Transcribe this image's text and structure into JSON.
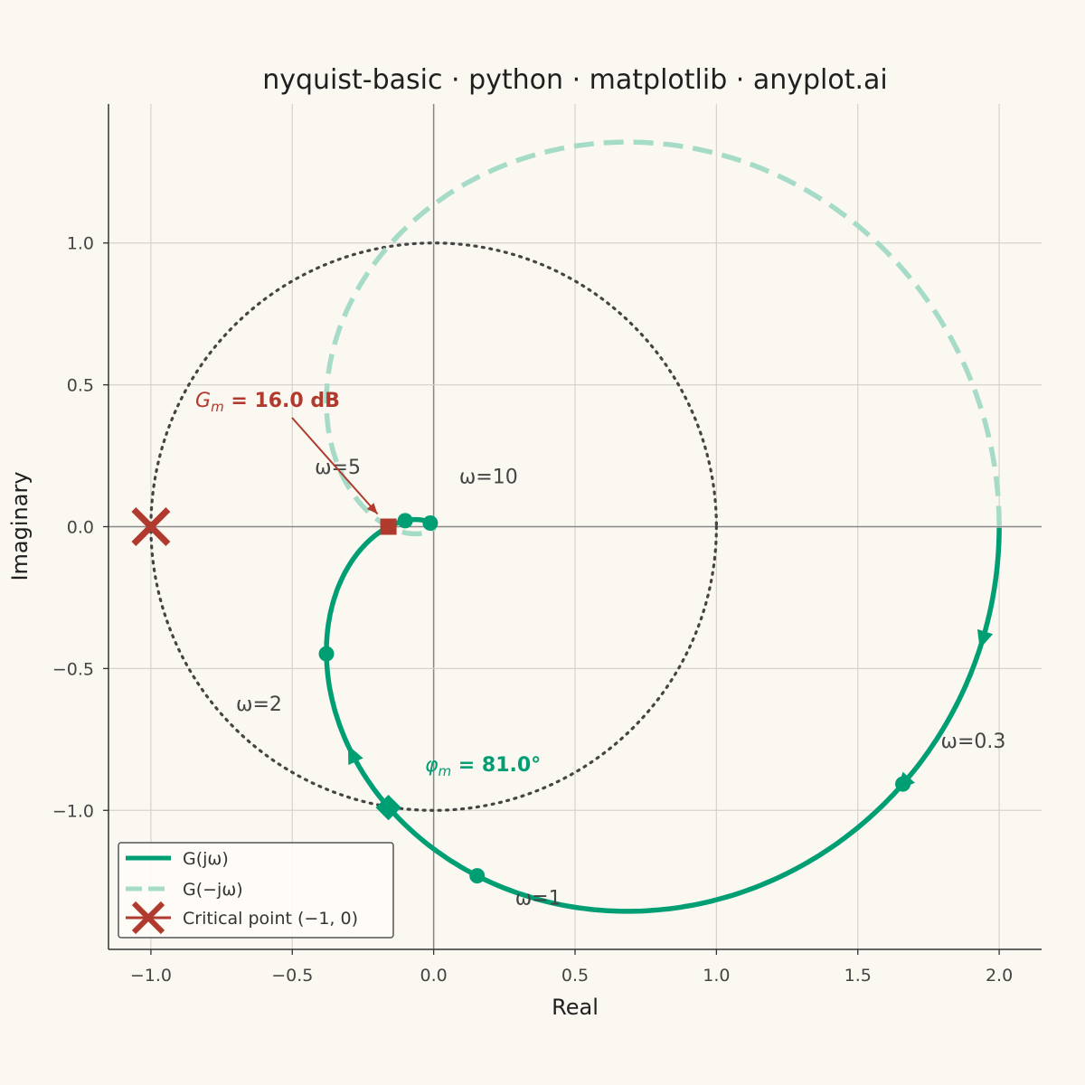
{
  "chart_data": {
    "type": "line",
    "title": "nyquist-basic · python · matplotlib · anyplot.ai",
    "xlabel": "Real",
    "ylabel": "Imaginary",
    "xlim": [
      -1.15,
      2.15
    ],
    "ylim": [
      -1.49,
      1.49
    ],
    "xticks": [
      -1.0,
      -0.5,
      0.0,
      0.5,
      1.0,
      1.5,
      2.0
    ],
    "xtick_labels": [
      "−1.0",
      "−0.5",
      "0.0",
      "0.5",
      "1.0",
      "1.5",
      "2.0"
    ],
    "yticks": [
      1.0,
      0.5,
      0.0,
      -0.5,
      -1.0
    ],
    "ytick_labels": [
      "1.0",
      "0.5",
      "0.0",
      "−0.5",
      "−1.0"
    ],
    "grid": true,
    "transfer_function": {
      "gain": 2,
      "poles": [
        -1,
        -2,
        -5
      ],
      "dc_gain_normalized": true
    },
    "series": [
      {
        "name": "G(jω)",
        "style": "solid",
        "color": "#009e73"
      },
      {
        "name": "G(−jω)",
        "style": "dashed",
        "color": "#a6dbc8"
      }
    ],
    "unit_circle": {
      "style": "dotted",
      "color": "#444444"
    },
    "critical_point": {
      "x": -1,
      "y": 0,
      "label": "Critical point (−1, 0)",
      "color": "#b03a2e"
    },
    "frequency_markers": [
      {
        "omega": 0.3,
        "label": "ω=0.3"
      },
      {
        "omega": 1,
        "label": "ω=1"
      },
      {
        "omega": 2,
        "label": "ω=2"
      },
      {
        "omega": 5,
        "label": "ω=5"
      },
      {
        "omega": 10,
        "label": "ω=10"
      }
    ],
    "gain_margin": {
      "label": "G",
      "subscript": "m",
      "value_text": " = 16.0 dB",
      "x": -0.16,
      "y": 0.0,
      "color": "#b03a2e"
    },
    "phase_margin": {
      "label": "φ",
      "subscript": "m",
      "value_text": " = 81.0°",
      "x": -0.16,
      "y": -0.99,
      "color": "#009e73"
    },
    "legend": {
      "placement": "lower-left",
      "entries": [
        "G(jω)",
        "G(−jω)",
        "Critical point (−1, 0)"
      ]
    }
  }
}
